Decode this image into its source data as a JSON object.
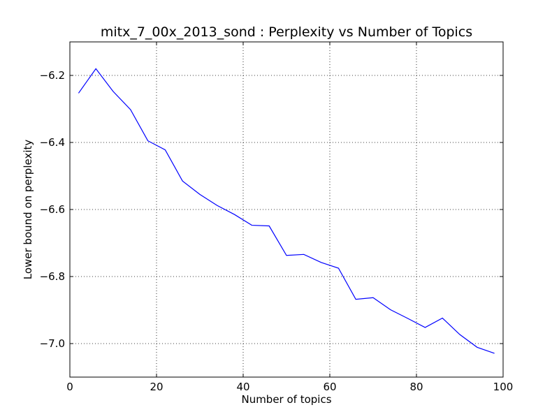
{
  "chart_data": {
    "type": "line",
    "title": "mitx_7_00x_2013_sond : Perplexity vs Number of Topics",
    "xlabel": "Number of topics",
    "ylabel": "Lower bound on perplexity",
    "xlim": [
      0,
      100
    ],
    "ylim": [
      -7.1,
      -6.1
    ],
    "xticks": [
      0,
      20,
      40,
      60,
      80,
      100
    ],
    "xtick_labels": [
      "0",
      "20",
      "40",
      "60",
      "80",
      "100"
    ],
    "yticks": [
      -6.2,
      -6.4,
      -6.6,
      -6.8,
      -7.0
    ],
    "ytick_labels": [
      "−6.2",
      "−6.4",
      "−6.6",
      "−6.8",
      "−7.0"
    ],
    "grid": true,
    "line_color": "#0000ff",
    "series": [
      {
        "x": [
          2,
          6,
          10,
          14,
          18,
          22,
          26,
          30,
          34,
          38,
          42,
          46,
          50,
          54,
          58,
          62,
          66,
          70,
          74,
          78,
          82,
          86,
          90,
          94,
          98
        ],
        "values": [
          -6.253,
          -6.18,
          -6.248,
          -6.302,
          -6.395,
          -6.422,
          -6.515,
          -6.555,
          -6.588,
          -6.615,
          -6.647,
          -6.649,
          -6.737,
          -6.734,
          -6.758,
          -6.775,
          -6.868,
          -6.863,
          -6.899,
          -6.925,
          -6.952,
          -6.924,
          -6.973,
          -7.011,
          -7.029
        ]
      }
    ]
  }
}
